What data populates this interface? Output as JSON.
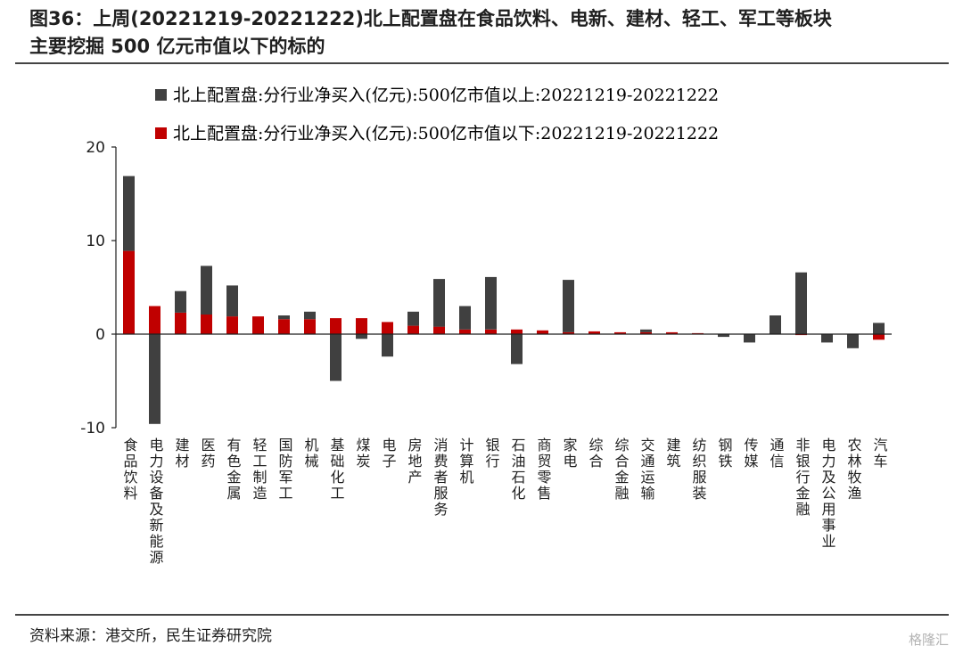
{
  "header": {
    "title_line1": "图36：上周(20221219-20221222)北上配置盘在食品饮料、电新、建材、轻工、军工等板块",
    "title_line2": "主要挖掘 500 亿元市值以下的标的"
  },
  "footer": {
    "source": "资料来源：港交所，民生证券研究院",
    "watermark": "格隆汇"
  },
  "colors": {
    "above": "#404040",
    "below": "#c00000",
    "axis": "#1f1f1f"
  },
  "chart_data": {
    "type": "bar",
    "stacked": true,
    "ylim": [
      -10,
      20
    ],
    "yticks": [
      -10,
      0,
      10,
      20
    ],
    "legend_position": "top",
    "grid": false,
    "categories": [
      "食品饮料",
      "电力设备及新能源",
      "建材",
      "医药",
      "有色金属",
      "轻工制造",
      "国防军工",
      "机械",
      "基础化工",
      "煤炭",
      "电子",
      "房地产",
      "消费者服务",
      "计算机",
      "银行",
      "石油石化",
      "商贸零售",
      "家电",
      "综合",
      "综合金融",
      "交通运输",
      "建筑",
      "纺织服装",
      "钢铁",
      "传媒",
      "通信",
      "非银行金融",
      "电力及公用事业",
      "农林牧渔",
      "汽车"
    ],
    "series": [
      {
        "name": "北上配置盘:分行业净买入(亿元):500亿市值以上:20221219-20221222",
        "values": [
          8.0,
          -9.6,
          2.3,
          5.2,
          3.3,
          0.0,
          0.4,
          0.8,
          -5.0,
          -0.5,
          -2.4,
          1.5,
          5.1,
          2.5,
          5.6,
          -3.2,
          0.0,
          5.6,
          0.0,
          0.0,
          0.3,
          0.0,
          0.0,
          -0.3,
          -0.9,
          2.0,
          6.6,
          -0.9,
          -1.5,
          1.2
        ]
      },
      {
        "name": "北上配置盘:分行业净买入(亿元):500亿市值以下:20221219-20221222",
        "values": [
          8.9,
          3.0,
          2.3,
          2.1,
          1.9,
          1.9,
          1.6,
          1.6,
          1.7,
          1.7,
          1.3,
          0.9,
          0.8,
          0.5,
          0.5,
          0.5,
          0.4,
          0.2,
          0.3,
          0.2,
          0.2,
          0.2,
          0.1,
          0.0,
          0.0,
          0.0,
          -0.1,
          0.0,
          0.0,
          -0.6
        ]
      }
    ]
  }
}
